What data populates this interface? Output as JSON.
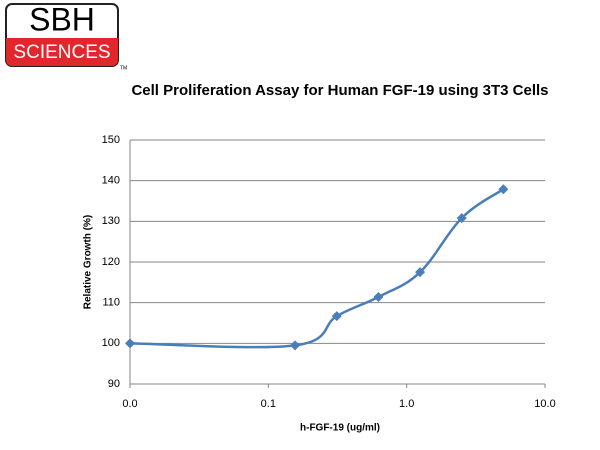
{
  "logo": {
    "name": "SBH",
    "subname": "SCIENCES",
    "mark": "TM"
  },
  "chart_data": {
    "type": "line",
    "title": "Cell Proliferation Assay for Human FGF-19 using 3T3 Cells",
    "x_label": "h-FGF-19 (ug/ml)",
    "y_label": "Relative Growth (%)",
    "x": [
      0.01,
      0.156,
      0.3125,
      0.625,
      1.25,
      2.5,
      5
    ],
    "series": [
      {
        "name": "Relative Growth",
        "color": "#4a7ebb",
        "values": [
          100,
          99.5,
          106.7,
          111.4,
          117.5,
          130.8,
          137.9
        ]
      }
    ],
    "xlim": [
      0.01,
      10
    ],
    "x_log": true,
    "xticks": [
      {
        "value": 0.01,
        "label": "0.0"
      },
      0.1,
      {
        "value": 1,
        "label": "1.0"
      },
      {
        "value": 10,
        "label": "10.0"
      }
    ],
    "ylim": [
      90,
      150
    ],
    "yticks": [
      90,
      100,
      110,
      120,
      130,
      140,
      150
    ],
    "grid": true
  }
}
